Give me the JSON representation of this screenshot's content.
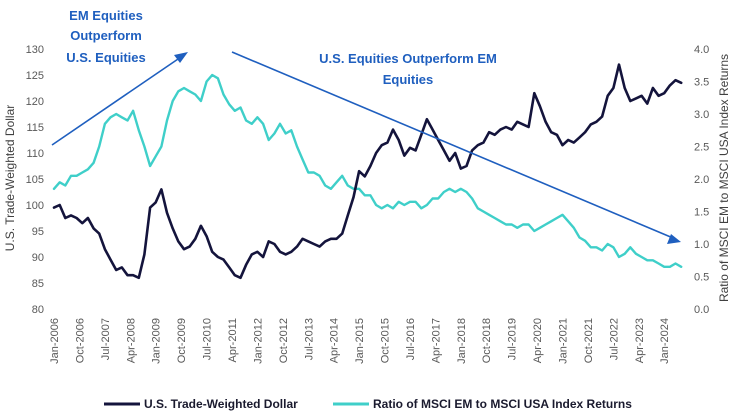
{
  "colors": {
    "dollar": "#14143c",
    "ratio": "#3fcfc9",
    "arrow": "#1f5fbf",
    "tick_text": "#595959"
  },
  "chart_data": {
    "type": "line",
    "left_axis": {
      "label": "U.S. Trade-Weighted Dollar",
      "ylim": [
        80,
        130
      ],
      "ticks": [
        "80",
        "85",
        "90",
        "95",
        "100",
        "105",
        "110",
        "115",
        "120",
        "125",
        "130"
      ]
    },
    "right_axis": {
      "label": "Ratio of MSCI EM to MSCI USA Index Returns",
      "ylim": [
        0.0,
        4.0
      ],
      "ticks": [
        "0.0",
        "0.5",
        "1.0",
        "1.5",
        "2.0",
        "2.5",
        "3.0",
        "3.5",
        "4.0"
      ]
    },
    "x_axis": {
      "range": [
        "2006-01",
        "2024-08"
      ],
      "tick_labels": [
        "Jan-2006",
        "Oct-2006",
        "Jul-2007",
        "Apr-2008",
        "Jan-2009",
        "Oct-2009",
        "Jul-2010",
        "Apr-2011",
        "Jan-2012",
        "Oct-2012",
        "Jul-2013",
        "Apr-2014",
        "Jan-2015",
        "Oct-2015",
        "Jul-2016",
        "Apr-2017",
        "Jan-2018",
        "Oct-2018",
        "Jul-2019",
        "Apr-2020",
        "Jan-2021",
        "Oct-2021",
        "Jul-2022",
        "Apr-2023",
        "Jan-2024"
      ]
    },
    "grid": false,
    "legend_position": "bottom",
    "annotations": [
      {
        "text_lines": [
          "EM Equities",
          "Outperform",
          "U.S. Equities"
        ],
        "arrow": "up"
      },
      {
        "text_lines": [
          "U.S. Equities Outperform EM",
          "Equities"
        ],
        "arrow": "down"
      }
    ],
    "series": [
      {
        "name": "U.S. Trade-Weighted Dollar",
        "axis": "left",
        "points": [
          [
            "2006-01",
            99.5
          ],
          [
            "2006-03",
            100.0
          ],
          [
            "2006-05",
            97.5
          ],
          [
            "2006-07",
            98.0
          ],
          [
            "2006-09",
            97.5
          ],
          [
            "2006-11",
            96.5
          ],
          [
            "2007-01",
            97.5
          ],
          [
            "2007-03",
            95.5
          ],
          [
            "2007-05",
            94.5
          ],
          [
            "2007-07",
            91.5
          ],
          [
            "2007-09",
            89.5
          ],
          [
            "2007-11",
            87.5
          ],
          [
            "2008-01",
            88.0
          ],
          [
            "2008-03",
            86.5
          ],
          [
            "2008-05",
            86.5
          ],
          [
            "2008-07",
            86.0
          ],
          [
            "2008-09",
            90.5
          ],
          [
            "2008-11",
            99.5
          ],
          [
            "2009-01",
            100.5
          ],
          [
            "2009-03",
            103.0
          ],
          [
            "2009-05",
            98.5
          ],
          [
            "2009-07",
            95.5
          ],
          [
            "2009-09",
            93.0
          ],
          [
            "2009-11",
            91.5
          ],
          [
            "2010-01",
            92.0
          ],
          [
            "2010-03",
            93.5
          ],
          [
            "2010-05",
            96.0
          ],
          [
            "2010-07",
            94.0
          ],
          [
            "2010-09",
            91.0
          ],
          [
            "2010-11",
            90.0
          ],
          [
            "2011-01",
            89.5
          ],
          [
            "2011-03",
            88.0
          ],
          [
            "2011-05",
            86.5
          ],
          [
            "2011-07",
            86.0
          ],
          [
            "2011-09",
            88.5
          ],
          [
            "2011-11",
            90.5
          ],
          [
            "2012-01",
            91.0
          ],
          [
            "2012-03",
            90.0
          ],
          [
            "2012-05",
            93.0
          ],
          [
            "2012-07",
            92.5
          ],
          [
            "2012-09",
            91.0
          ],
          [
            "2012-11",
            90.5
          ],
          [
            "2013-01",
            91.0
          ],
          [
            "2013-03",
            92.0
          ],
          [
            "2013-05",
            93.5
          ],
          [
            "2013-07",
            93.0
          ],
          [
            "2013-09",
            92.5
          ],
          [
            "2013-11",
            92.0
          ],
          [
            "2014-01",
            93.0
          ],
          [
            "2014-03",
            93.5
          ],
          [
            "2014-05",
            93.5
          ],
          [
            "2014-07",
            94.5
          ],
          [
            "2014-09",
            98.0
          ],
          [
            "2014-11",
            101.5
          ],
          [
            "2015-01",
            106.5
          ],
          [
            "2015-03",
            105.5
          ],
          [
            "2015-05",
            107.5
          ],
          [
            "2015-07",
            110.0
          ],
          [
            "2015-09",
            111.5
          ],
          [
            "2015-11",
            112.0
          ],
          [
            "2016-01",
            114.5
          ],
          [
            "2016-03",
            112.5
          ],
          [
            "2016-05",
            109.5
          ],
          [
            "2016-07",
            111.0
          ],
          [
            "2016-09",
            110.5
          ],
          [
            "2016-11",
            113.5
          ],
          [
            "2017-01",
            116.5
          ],
          [
            "2017-03",
            114.5
          ],
          [
            "2017-05",
            112.5
          ],
          [
            "2017-07",
            110.5
          ],
          [
            "2017-09",
            108.5
          ],
          [
            "2017-11",
            110.0
          ],
          [
            "2018-01",
            107.0
          ],
          [
            "2018-03",
            107.5
          ],
          [
            "2018-05",
            110.5
          ],
          [
            "2018-07",
            111.5
          ],
          [
            "2018-09",
            112.0
          ],
          [
            "2018-11",
            114.0
          ],
          [
            "2019-01",
            113.5
          ],
          [
            "2019-03",
            114.5
          ],
          [
            "2019-05",
            115.0
          ],
          [
            "2019-07",
            114.5
          ],
          [
            "2019-09",
            116.0
          ],
          [
            "2019-11",
            115.5
          ],
          [
            "2020-01",
            115.0
          ],
          [
            "2020-03",
            121.5
          ],
          [
            "2020-05",
            119.0
          ],
          [
            "2020-07",
            116.0
          ],
          [
            "2020-09",
            114.0
          ],
          [
            "2020-11",
            113.5
          ],
          [
            "2021-01",
            111.5
          ],
          [
            "2021-03",
            112.5
          ],
          [
            "2021-05",
            112.0
          ],
          [
            "2021-07",
            113.0
          ],
          [
            "2021-09",
            114.0
          ],
          [
            "2021-11",
            115.5
          ],
          [
            "2022-01",
            116.0
          ],
          [
            "2022-03",
            117.0
          ],
          [
            "2022-05",
            121.0
          ],
          [
            "2022-07",
            122.5
          ],
          [
            "2022-09",
            127.0
          ],
          [
            "2022-11",
            122.5
          ],
          [
            "2023-01",
            120.0
          ],
          [
            "2023-03",
            120.5
          ],
          [
            "2023-05",
            121.0
          ],
          [
            "2023-07",
            119.5
          ],
          [
            "2023-09",
            122.5
          ],
          [
            "2023-11",
            121.0
          ],
          [
            "2024-01",
            121.5
          ],
          [
            "2024-03",
            123.0
          ],
          [
            "2024-05",
            124.0
          ],
          [
            "2024-07",
            123.5
          ]
        ]
      },
      {
        "name": "Ratio of MSCI EM to MSCI USA Index Returns",
        "axis": "right",
        "points": [
          [
            "2006-01",
            1.85
          ],
          [
            "2006-03",
            1.95
          ],
          [
            "2006-05",
            1.9
          ],
          [
            "2006-07",
            2.05
          ],
          [
            "2006-09",
            2.05
          ],
          [
            "2006-11",
            2.1
          ],
          [
            "2007-01",
            2.15
          ],
          [
            "2007-03",
            2.25
          ],
          [
            "2007-05",
            2.5
          ],
          [
            "2007-07",
            2.85
          ],
          [
            "2007-09",
            2.95
          ],
          [
            "2007-11",
            3.0
          ],
          [
            "2008-01",
            2.95
          ],
          [
            "2008-03",
            2.9
          ],
          [
            "2008-05",
            3.05
          ],
          [
            "2008-07",
            2.75
          ],
          [
            "2008-09",
            2.5
          ],
          [
            "2008-11",
            2.2
          ],
          [
            "2009-01",
            2.35
          ],
          [
            "2009-03",
            2.5
          ],
          [
            "2009-05",
            2.9
          ],
          [
            "2009-07",
            3.2
          ],
          [
            "2009-09",
            3.35
          ],
          [
            "2009-11",
            3.4
          ],
          [
            "2010-01",
            3.35
          ],
          [
            "2010-03",
            3.3
          ],
          [
            "2010-05",
            3.2
          ],
          [
            "2010-07",
            3.5
          ],
          [
            "2010-09",
            3.6
          ],
          [
            "2010-11",
            3.55
          ],
          [
            "2011-01",
            3.3
          ],
          [
            "2011-03",
            3.15
          ],
          [
            "2011-05",
            3.05
          ],
          [
            "2011-07",
            3.1
          ],
          [
            "2011-09",
            2.9
          ],
          [
            "2011-11",
            2.85
          ],
          [
            "2012-01",
            2.95
          ],
          [
            "2012-03",
            2.85
          ],
          [
            "2012-05",
            2.6
          ],
          [
            "2012-07",
            2.7
          ],
          [
            "2012-09",
            2.85
          ],
          [
            "2012-11",
            2.7
          ],
          [
            "2013-01",
            2.75
          ],
          [
            "2013-03",
            2.5
          ],
          [
            "2013-05",
            2.3
          ],
          [
            "2013-07",
            2.1
          ],
          [
            "2013-09",
            2.1
          ],
          [
            "2013-11",
            2.05
          ],
          [
            "2014-01",
            1.9
          ],
          [
            "2014-03",
            1.85
          ],
          [
            "2014-05",
            1.95
          ],
          [
            "2014-07",
            2.05
          ],
          [
            "2014-09",
            1.9
          ],
          [
            "2014-11",
            1.85
          ],
          [
            "2015-01",
            1.85
          ],
          [
            "2015-03",
            1.75
          ],
          [
            "2015-05",
            1.75
          ],
          [
            "2015-07",
            1.6
          ],
          [
            "2015-09",
            1.55
          ],
          [
            "2015-11",
            1.6
          ],
          [
            "2016-01",
            1.55
          ],
          [
            "2016-03",
            1.65
          ],
          [
            "2016-05",
            1.6
          ],
          [
            "2016-07",
            1.65
          ],
          [
            "2016-09",
            1.65
          ],
          [
            "2016-11",
            1.55
          ],
          [
            "2017-01",
            1.6
          ],
          [
            "2017-03",
            1.7
          ],
          [
            "2017-05",
            1.7
          ],
          [
            "2017-07",
            1.8
          ],
          [
            "2017-09",
            1.85
          ],
          [
            "2017-11",
            1.8
          ],
          [
            "2018-01",
            1.85
          ],
          [
            "2018-03",
            1.8
          ],
          [
            "2018-05",
            1.7
          ],
          [
            "2018-07",
            1.55
          ],
          [
            "2018-09",
            1.5
          ],
          [
            "2018-11",
            1.45
          ],
          [
            "2019-01",
            1.4
          ],
          [
            "2019-03",
            1.35
          ],
          [
            "2019-05",
            1.3
          ],
          [
            "2019-07",
            1.3
          ],
          [
            "2019-09",
            1.25
          ],
          [
            "2019-11",
            1.3
          ],
          [
            "2020-01",
            1.3
          ],
          [
            "2020-03",
            1.2
          ],
          [
            "2020-05",
            1.25
          ],
          [
            "2020-07",
            1.3
          ],
          [
            "2020-09",
            1.35
          ],
          [
            "2020-11",
            1.4
          ],
          [
            "2021-01",
            1.45
          ],
          [
            "2021-03",
            1.35
          ],
          [
            "2021-05",
            1.25
          ],
          [
            "2021-07",
            1.1
          ],
          [
            "2021-09",
            1.05
          ],
          [
            "2021-11",
            0.95
          ],
          [
            "2022-01",
            0.95
          ],
          [
            "2022-03",
            0.9
          ],
          [
            "2022-05",
            1.0
          ],
          [
            "2022-07",
            0.95
          ],
          [
            "2022-09",
            0.8
          ],
          [
            "2022-11",
            0.85
          ],
          [
            "2023-01",
            0.95
          ],
          [
            "2023-03",
            0.85
          ],
          [
            "2023-05",
            0.8
          ],
          [
            "2023-07",
            0.75
          ],
          [
            "2023-09",
            0.75
          ],
          [
            "2023-11",
            0.7
          ],
          [
            "2024-01",
            0.65
          ],
          [
            "2024-03",
            0.65
          ],
          [
            "2024-05",
            0.7
          ],
          [
            "2024-07",
            0.65
          ]
        ]
      }
    ]
  }
}
